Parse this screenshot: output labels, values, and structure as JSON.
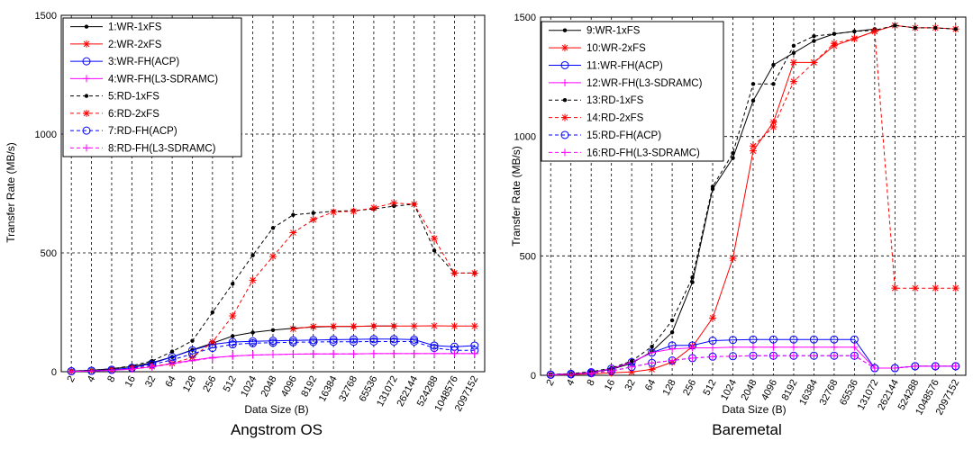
{
  "chart_data": [
    {
      "type": "line",
      "title": "Angstrom OS",
      "xlabel": "Data Size (B)",
      "ylabel": "Transfer Rate (MB/s)",
      "ylim": [
        0,
        1500
      ],
      "yticks": [
        0,
        500,
        1000,
        1500
      ],
      "grid": true,
      "legend_position": "top-left",
      "categories": [
        "2",
        "4",
        "8",
        "16",
        "32",
        "64",
        "128",
        "256",
        "512",
        "1024",
        "2048",
        "4096",
        "8192",
        "16384",
        "32768",
        "65536",
        "131072",
        "262144",
        "524288",
        "1048576",
        "2097152"
      ],
      "series": [
        {
          "name": "1:WR-1xFS",
          "color": "#000000",
          "dash": "solid",
          "marker": "dot",
          "values": [
            3,
            6,
            12,
            22,
            38,
            62,
            92,
            120,
            150,
            165,
            175,
            183,
            188,
            190,
            190,
            192,
            192,
            null,
            null,
            null,
            null
          ]
        },
        {
          "name": "2:WR-2xFS",
          "color": "#ff0000",
          "dash": "solid",
          "marker": "star",
          "values": [
            null,
            null,
            null,
            null,
            null,
            null,
            null,
            null,
            null,
            null,
            null,
            180,
            190,
            191,
            191,
            192,
            192,
            192,
            193,
            192,
            192
          ]
        },
        {
          "name": "3:WR-FH(ACP)",
          "color": "#0000ff",
          "dash": "solid",
          "marker": "circle",
          "values": [
            2,
            4,
            8,
            16,
            35,
            62,
            90,
            115,
            125,
            128,
            130,
            132,
            133,
            135,
            136,
            137,
            137,
            135,
            110,
            105,
            110
          ]
        },
        {
          "name": "4:WR-FH(L3-SDRAMC)",
          "color": "#ff00ff",
          "dash": "solid",
          "marker": "plus",
          "values": [
            2,
            3,
            6,
            11,
            21,
            34,
            48,
            60,
            66,
            70,
            72,
            74,
            75,
            75,
            75,
            76,
            76,
            76,
            76,
            76,
            76
          ]
        },
        {
          "name": "5:RD-1xFS",
          "color": "#000000",
          "dash": "dashed",
          "marker": "dot",
          "values": [
            3,
            6,
            12,
            25,
            45,
            85,
            130,
            250,
            370,
            490,
            605,
            660,
            668,
            675,
            678,
            685,
            697,
            705,
            510,
            415,
            415
          ]
        },
        {
          "name": "6:RD-2xFS",
          "color": "#ff0000",
          "dash": "dashed",
          "marker": "star",
          "values": [
            2,
            4,
            8,
            14,
            22,
            35,
            60,
            125,
            235,
            385,
            485,
            585,
            640,
            672,
            675,
            690,
            710,
            705,
            560,
            415,
            415
          ]
        },
        {
          "name": "7:RD-FH(ACP)",
          "color": "#0000ff",
          "dash": "dashed",
          "marker": "circle",
          "values": [
            2,
            4,
            8,
            16,
            30,
            50,
            75,
            100,
            115,
            120,
            122,
            124,
            125,
            126,
            126,
            127,
            127,
            127,
            100,
            90,
            90
          ]
        },
        {
          "name": "8:RD-FH(L3-SDRAMC)",
          "color": "#ff00ff",
          "dash": "dashed",
          "marker": "plus",
          "values": [
            1,
            3,
            6,
            11,
            20,
            33,
            46,
            58,
            66,
            70,
            72,
            74,
            75,
            75,
            75,
            76,
            76,
            76,
            76,
            76,
            76
          ]
        }
      ]
    },
    {
      "type": "line",
      "title": "Baremetal",
      "xlabel": "Data Size (B)",
      "ylabel": "Transfer Rate (MB/s)",
      "ylim": [
        0,
        1500
      ],
      "yticks": [
        0,
        500,
        1000,
        1500
      ],
      "grid": true,
      "legend_position": "top-left",
      "categories": [
        "2",
        "4",
        "8",
        "16",
        "32",
        "64",
        "128",
        "256",
        "512",
        "1024",
        "2048",
        "4096",
        "8192",
        "16384",
        "32768",
        "65536",
        "131072",
        "262144",
        "524288",
        "1048576",
        "2097152"
      ],
      "series": [
        {
          "name": "9:WR-1xFS",
          "color": "#000000",
          "dash": "solid",
          "marker": "dot",
          "values": [
            3,
            6,
            12,
            25,
            50,
            100,
            180,
            390,
            780,
            910,
            1150,
            1300,
            1350,
            1400,
            1430,
            1440,
            1450,
            null,
            null,
            null,
            null
          ]
        },
        {
          "name": "10:WR-2xFS",
          "color": "#ff0000",
          "dash": "solid",
          "marker": "star",
          "values": [
            2,
            3,
            6,
            10,
            14,
            25,
            55,
            120,
            240,
            490,
            940,
            1060,
            1310,
            1310,
            1380,
            1410,
            1440,
            1465,
            1455,
            1455,
            1450
          ]
        },
        {
          "name": "11:WR-FH(ACP)",
          "color": "#0000ff",
          "dash": "solid",
          "marker": "circle",
          "values": [
            3,
            6,
            13,
            28,
            55,
            95,
            125,
            125,
            145,
            148,
            150,
            150,
            150,
            150,
            150,
            150,
            30,
            30,
            38,
            38,
            38
          ]
        },
        {
          "name": "12:WR-FH(L3-SDRAMC)",
          "color": "#ff00ff",
          "dash": "solid",
          "marker": "plus",
          "values": [
            3,
            6,
            13,
            28,
            55,
            95,
            110,
            115,
            115,
            118,
            118,
            118,
            118,
            118,
            118,
            118,
            30,
            30,
            38,
            38,
            38
          ]
        },
        {
          "name": "13:RD-1xFS",
          "color": "#000000",
          "dash": "dashed",
          "marker": "dot",
          "values": [
            3,
            7,
            15,
            30,
            60,
            120,
            230,
            410,
            790,
            930,
            1220,
            1220,
            1380,
            1420,
            1430,
            1440,
            1445,
            1465,
            1455,
            1455,
            1450
          ]
        },
        {
          "name": "14:RD-2xFS",
          "color": "#ff0000",
          "dash": "dashed",
          "marker": "star",
          "values": [
            null,
            null,
            null,
            null,
            null,
            null,
            null,
            null,
            null,
            null,
            960,
            1040,
            1230,
            1310,
            1390,
            1410,
            1440,
            365,
            365,
            365,
            365
          ]
        },
        {
          "name": "15:RD-FH(ACP)",
          "color": "#0000ff",
          "dash": "dashed",
          "marker": "circle",
          "values": [
            2,
            4,
            9,
            18,
            35,
            52,
            62,
            72,
            78,
            80,
            82,
            82,
            82,
            82,
            82,
            82,
            30,
            30,
            38,
            38,
            38
          ]
        },
        {
          "name": "16:RD-FH(L3-SDRAMC)",
          "color": "#ff00ff",
          "dash": "dashed",
          "marker": "plus",
          "values": [
            2,
            4,
            9,
            18,
            35,
            52,
            62,
            72,
            78,
            80,
            82,
            82,
            82,
            82,
            82,
            82,
            30,
            30,
            38,
            38,
            38
          ]
        }
      ]
    }
  ]
}
